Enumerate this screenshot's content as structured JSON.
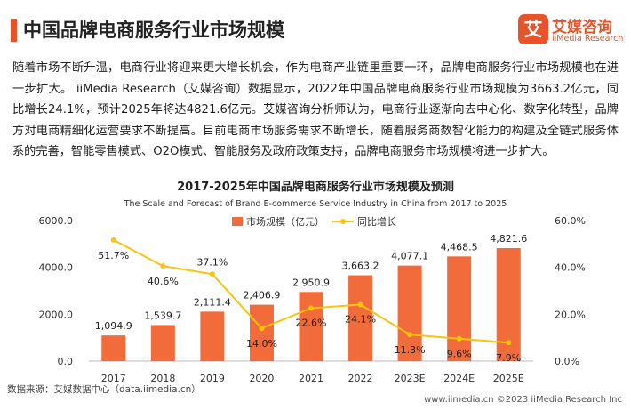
{
  "header": {
    "title": "中国品牌电商服务行业市场规模",
    "logo_mark": "艾",
    "logo_cn": "艾媒咨询",
    "logo_en": "iiMedia Research"
  },
  "intro": "随着市场不断升温，电商行业将迎来更大增长机会，作为电商产业链里重要一环，品牌电商服务行业市场规模也在进一步扩大。 iiMedia Research（艾媒咨询）数据显示，2022年中国品牌电商服务行业市场规模为3663.2亿元，同比增长24.1%，预计2025年将达4821.6亿元。艾媒咨询分析师认为，电商行业逐渐向去中心化、数字化转型，品牌方对电商精细化运营要求不断提高。目前电商市场服务需求不断增长，随着服务商数智化能力的构建及全链式服务体系的完善，智能零售模式、O2O模式、智能服务及政府政策支持，品牌电商服务市场规模将进一步扩大。",
  "chart_data": {
    "type": "bar",
    "title": "2017-2025年中国品牌电商服务行业市场规模及预测",
    "subtitle": "The Scale and Forecast of Brand E-commerce Service Industry in China from 2017 to 2025",
    "categories": [
      "2017",
      "2018",
      "2019",
      "2020",
      "2021",
      "2022",
      "2023E",
      "2024E",
      "2025E"
    ],
    "series": [
      {
        "name": "市场规模（亿元）",
        "type": "bar",
        "axis": "left",
        "values": [
          1094.9,
          1539.7,
          2111.4,
          2406.9,
          2950.9,
          3663.2,
          4077.1,
          4468.5,
          4821.6
        ],
        "labels": [
          "1,094.9",
          "1,539.7",
          "2,111.4",
          "2,406.9",
          "2,950.9",
          "3,663.2",
          "4,077.1",
          "4,468.5",
          "4,821.6"
        ],
        "color": "#f26b3a"
      },
      {
        "name": "同比增长",
        "type": "line",
        "axis": "right",
        "values": [
          51.7,
          40.6,
          37.1,
          14.0,
          22.6,
          24.1,
          11.3,
          9.6,
          7.9
        ],
        "labels": [
          "51.7%",
          "40.6%",
          "37.1%",
          "14.0%",
          "22.6%",
          "24.1%",
          "11.3%",
          "9.6%",
          "7.9%"
        ],
        "color": "#fcc30b"
      }
    ],
    "y_left": {
      "min": 0,
      "max": 6000,
      "ticks": [
        0,
        2000,
        4000,
        6000
      ],
      "tick_labels": [
        "0.0",
        "2000.0",
        "4000.0",
        "6000.0"
      ]
    },
    "y_right": {
      "min": 0,
      "max": 60,
      "ticks": [
        0,
        20,
        40,
        60
      ],
      "tick_labels": [
        "0.0%",
        "20.0%",
        "40.0%",
        "60.0%"
      ]
    },
    "legend_position": "top-center",
    "grid": false
  },
  "footer": {
    "source": "数据来源：艾媒数据中心（data.iimedia.cn）",
    "right": "www.iimedia.cn    ©2023  iiMedia Research  Inc"
  }
}
